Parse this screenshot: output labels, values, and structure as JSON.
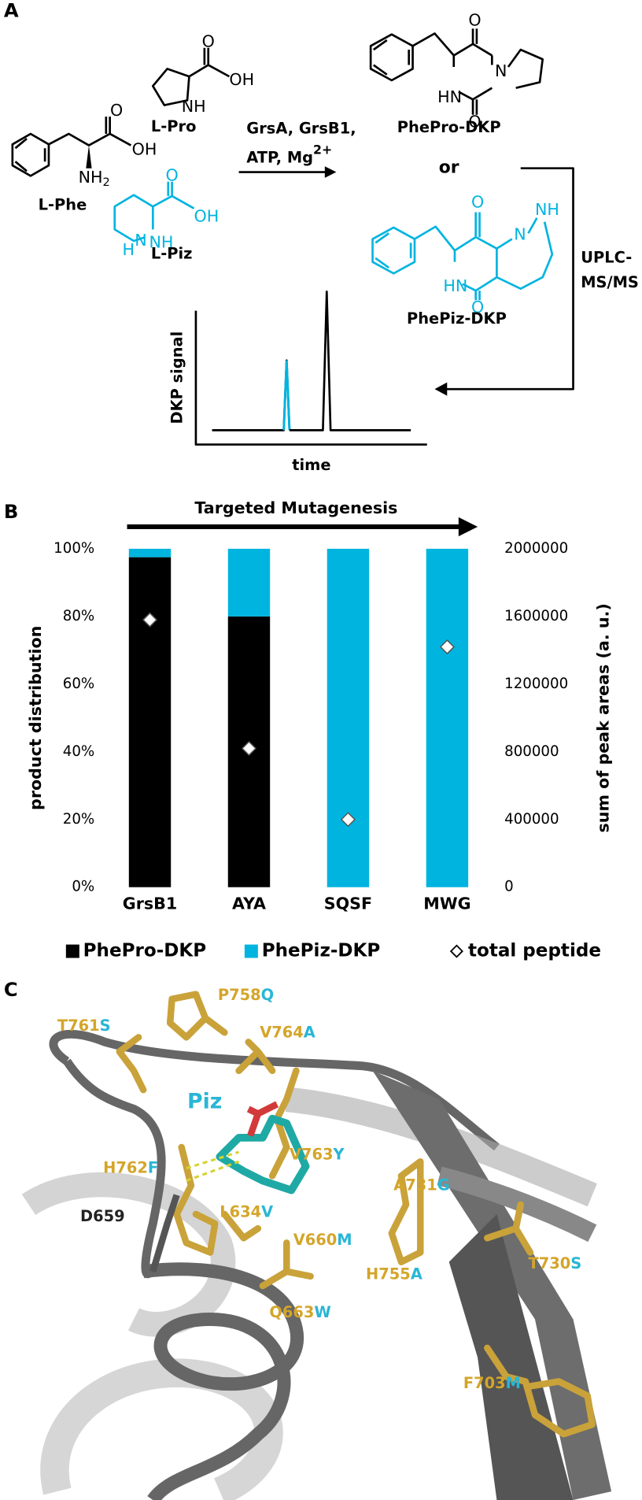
{
  "panels": [
    "A",
    "B",
    "C"
  ],
  "scheme": {
    "reactants": [
      "L-Phe",
      "L-Pro",
      "L-Piz"
    ],
    "reagents": [
      "GrsA, GrsB1,",
      "ATP, Mg"
    ],
    "reagent_superscript": "2+",
    "products": [
      "PhePro-DKP",
      "PhePiz-DKP"
    ],
    "connector": "or",
    "analysis": [
      "UPLC-",
      "MS/MS"
    ],
    "chromatogram_ylabel": "DKP signal",
    "chromatogram_xlabel": "time",
    "atoms": [
      "O",
      "OH",
      "NH",
      "2",
      "O",
      "OH",
      "NH",
      "O",
      "OH",
      "NH",
      "N",
      "H",
      "O",
      "O",
      "HN",
      "N",
      "O",
      "O",
      "HN",
      "N",
      "NH"
    ]
  },
  "chart_data": {
    "type": "bar",
    "stacked": true,
    "annotation": "Targeted Mutagenesis",
    "categories": [
      "GrsB1",
      "AYA",
      "SQSF",
      "MWG"
    ],
    "series": [
      {
        "name": "PhePro-DKP",
        "color": "#000000",
        "values": [
          97.5,
          80,
          0,
          0
        ]
      },
      {
        "name": "PhePiz-DKP",
        "color": "#00b4e0",
        "values": [
          2.5,
          20,
          100,
          100
        ]
      },
      {
        "name": "total peptide",
        "type": "scatter",
        "axis": "y2",
        "color": "#ffffff",
        "values": [
          1580000,
          820000,
          400000,
          1420000
        ]
      }
    ],
    "ylabel": "product distribution",
    "y2label": "sum of peak areas (a. u.)",
    "ylim": [
      0,
      100
    ],
    "yticks": [
      {
        "value": 0,
        "label": "0%"
      },
      {
        "value": 20,
        "label": "20%"
      },
      {
        "value": 40,
        "label": "40%"
      },
      {
        "value": 60,
        "label": "60%"
      },
      {
        "value": 80,
        "label": "80%"
      },
      {
        "value": 100,
        "label": "100%"
      }
    ],
    "y2lim": [
      0,
      2000000
    ],
    "y2ticks": [
      0,
      400000,
      800000,
      1200000,
      1600000,
      2000000
    ],
    "grid": false,
    "legend": "bottom"
  },
  "structure": {
    "ligand": "Piz",
    "wild_type_residue": "D659",
    "mutations": [
      {
        "wild": "T761",
        "mutant": "S"
      },
      {
        "wild": "P758",
        "mutant": "Q"
      },
      {
        "wild": "V764",
        "mutant": "A"
      },
      {
        "wild": "H762",
        "mutant": "F"
      },
      {
        "wild": "V763",
        "mutant": "Y"
      },
      {
        "wild": "L634",
        "mutant": "V"
      },
      {
        "wild": "A731",
        "mutant": "G"
      },
      {
        "wild": "V660",
        "mutant": "M"
      },
      {
        "wild": "H755",
        "mutant": "A"
      },
      {
        "wild": "T730",
        "mutant": "S"
      },
      {
        "wild": "Q663",
        "mutant": "W"
      },
      {
        "wild": "F703",
        "mutant": "M"
      }
    ]
  }
}
